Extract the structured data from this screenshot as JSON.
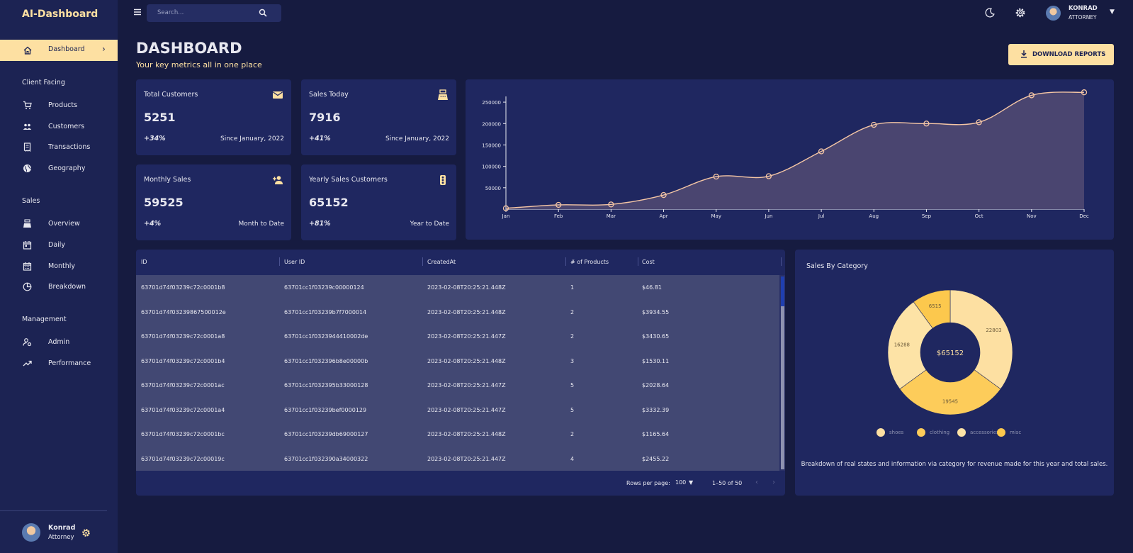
{
  "app": {
    "brand": "AI-Dashboard"
  },
  "sidebar": {
    "active_item": "Dashboard",
    "sections": [
      {
        "title": "Client Facing",
        "items": [
          "Products",
          "Customers",
          "Transactions",
          "Geography"
        ]
      },
      {
        "title": "Sales",
        "items": [
          "Overview",
          "Daily",
          "Monthly",
          "Breakdown"
        ]
      },
      {
        "title": "Management",
        "items": [
          "Admin",
          "Performance"
        ]
      }
    ],
    "user": {
      "name": "Konrad",
      "role": "Attorney"
    }
  },
  "topbar": {
    "search_placeholder": "Search...",
    "user": {
      "name": "KONRAD",
      "role": "ATTORNEY"
    }
  },
  "header": {
    "title": "DASHBOARD",
    "subtitle": "Your key metrics all in one place",
    "download_label": "DOWNLOAD REPORTS"
  },
  "stats": [
    {
      "title": "Total Customers",
      "value": "5251",
      "change": "+34%",
      "since": "Since January, 2022",
      "icon": "email-icon"
    },
    {
      "title": "Sales Today",
      "value": "7916",
      "change": "+41%",
      "since": "Since January, 2022",
      "icon": "point-of-sale-icon"
    },
    {
      "title": "Monthly Sales",
      "value": "59525",
      "change": "+4%",
      "since": "Month to Date",
      "icon": "person-add-icon"
    },
    {
      "title": "Yearly Sales Customers",
      "value": "65152",
      "change": "+81%",
      "since": "Year to Date",
      "icon": "traffic-icon"
    }
  ],
  "chart_data": [
    {
      "type": "area",
      "categories": [
        "Jan",
        "Feb",
        "Mar",
        "Apr",
        "May",
        "Jun",
        "Jul",
        "Aug",
        "Sep",
        "Oct",
        "Nov",
        "Dec"
      ],
      "values": [
        2000,
        10000,
        11000,
        33000,
        76000,
        77000,
        135000,
        197000,
        200000,
        203000,
        266000,
        273000
      ],
      "yticks": [
        50000,
        100000,
        150000,
        200000,
        250000
      ],
      "ylim": [
        0,
        270000
      ],
      "line_color": "#f5c6a5",
      "fill_color": "#4a4570"
    },
    {
      "type": "pie",
      "title": "Sales By Category",
      "labels": [
        "shoes",
        "clothing",
        "accessories",
        "misc"
      ],
      "values": [
        22803,
        19545,
        16288,
        6515
      ],
      "colors": [
        "#fde0a2",
        "#fdcc5a",
        "#fde3a6",
        "#fcc84d"
      ],
      "center_label": "$65152"
    }
  ],
  "table": {
    "columns": [
      "ID",
      "User ID",
      "CreatedAt",
      "# of Products",
      "Cost"
    ],
    "rows": [
      [
        "63701d74f03239c72c0001b8",
        "63701cc1f03239c00000124",
        "2023-02-08T20:25:21.448Z",
        "1",
        "$46.81"
      ],
      [
        "63701d74f03239867500012e",
        "63701cc1f03239b7f7000014",
        "2023-02-08T20:25:21.448Z",
        "2",
        "$3934.55"
      ],
      [
        "63701d74f03239c72c0001a8",
        "63701cc1f0323944410002de",
        "2023-02-08T20:25:21.447Z",
        "2",
        "$3430.65"
      ],
      [
        "63701d74f03239c72c0001b4",
        "63701cc1f032396b8e00000b",
        "2023-02-08T20:25:21.448Z",
        "3",
        "$1530.11"
      ],
      [
        "63701d74f03239c72c0001ac",
        "63701cc1f032395b33000128",
        "2023-02-08T20:25:21.447Z",
        "5",
        "$2028.64"
      ],
      [
        "63701d74f03239c72c0001a4",
        "63701cc1f03239bef0000129",
        "2023-02-08T20:25:21.447Z",
        "5",
        "$3332.39"
      ],
      [
        "63701d74f03239c72c0001bc",
        "63701cc1f03239db69000127",
        "2023-02-08T20:25:21.448Z",
        "2",
        "$1165.64"
      ],
      [
        "63701d74f03239c72c00019c",
        "63701cc1f032390a34000322",
        "2023-02-08T20:25:21.447Z",
        "4",
        "$2455.22"
      ]
    ],
    "rows_per_page_label": "Rows per page:",
    "rows_per_page": "100",
    "range": "1–50 of 50"
  },
  "pie_description": "Breakdown of real states and information via category for revenue made for this year and total sales.",
  "colors": {
    "accent": "#fde0a2",
    "background": "#161b40",
    "panel": "#1f2760"
  }
}
